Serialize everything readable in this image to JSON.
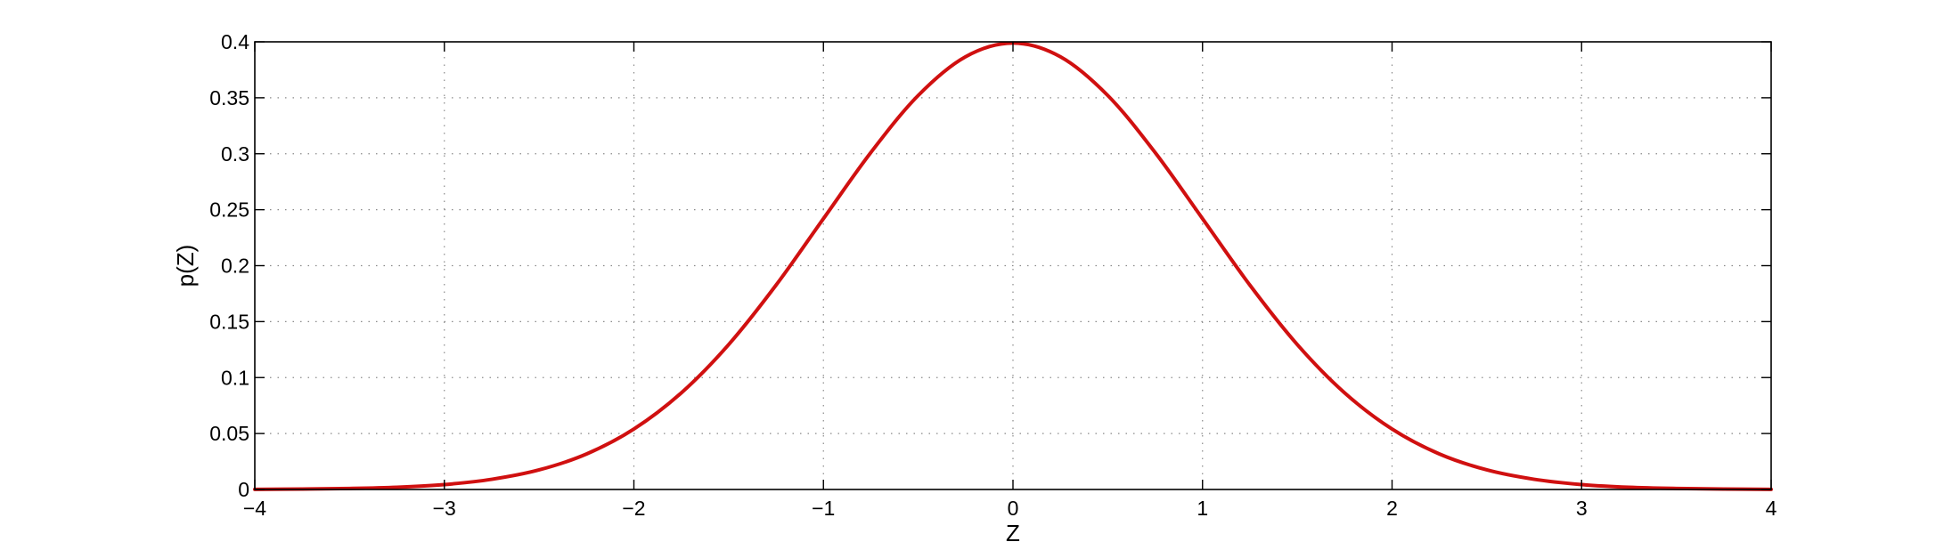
{
  "chart_data": {
    "type": "line",
    "title": "",
    "xlabel": "Z",
    "ylabel": "p(Z)",
    "xlim": [
      -4,
      4
    ],
    "ylim": [
      0,
      0.4
    ],
    "grid": true,
    "x_ticks": [
      {
        "value": -4,
        "label": "−4"
      },
      {
        "value": -3,
        "label": "−3"
      },
      {
        "value": -2,
        "label": "−2"
      },
      {
        "value": -1,
        "label": "−1"
      },
      {
        "value": 0,
        "label": "0"
      },
      {
        "value": 1,
        "label": "1"
      },
      {
        "value": 2,
        "label": "2"
      },
      {
        "value": 3,
        "label": "3"
      },
      {
        "value": 4,
        "label": "4"
      }
    ],
    "y_ticks": [
      {
        "value": 0,
        "label": "0"
      },
      {
        "value": 0.05,
        "label": "0.05"
      },
      {
        "value": 0.1,
        "label": "0.1"
      },
      {
        "value": 0.15,
        "label": "0.15"
      },
      {
        "value": 0.2,
        "label": "0.2"
      },
      {
        "value": 0.25,
        "label": "0.25"
      },
      {
        "value": 0.3,
        "label": "0.3"
      },
      {
        "value": 0.35,
        "label": "0.35"
      },
      {
        "value": 0.4,
        "label": "0.4"
      }
    ],
    "series": [
      {
        "color": "#d01010",
        "x": [
          -4,
          -3.75,
          -3.5,
          -3.25,
          -3,
          -2.75,
          -2.5,
          -2.25,
          -2,
          -1.75,
          -1.5,
          -1.25,
          -1,
          -0.75,
          -0.5,
          -0.25,
          0,
          0.25,
          0.5,
          0.75,
          1,
          1.25,
          1.5,
          1.75,
          2,
          2.25,
          2.5,
          2.75,
          3,
          3.25,
          3.5,
          3.75,
          4
        ],
        "y": [
          0.0001,
          0.0004,
          0.0009,
          0.002,
          0.0044,
          0.0091,
          0.0175,
          0.0317,
          0.054,
          0.0863,
          0.1295,
          0.1826,
          0.242,
          0.3011,
          0.3521,
          0.3867,
          0.3989,
          0.3867,
          0.3521,
          0.3011,
          0.242,
          0.1826,
          0.1295,
          0.0863,
          0.054,
          0.0317,
          0.0175,
          0.0091,
          0.0044,
          0.002,
          0.0009,
          0.0004,
          0.0001
        ]
      }
    ]
  }
}
